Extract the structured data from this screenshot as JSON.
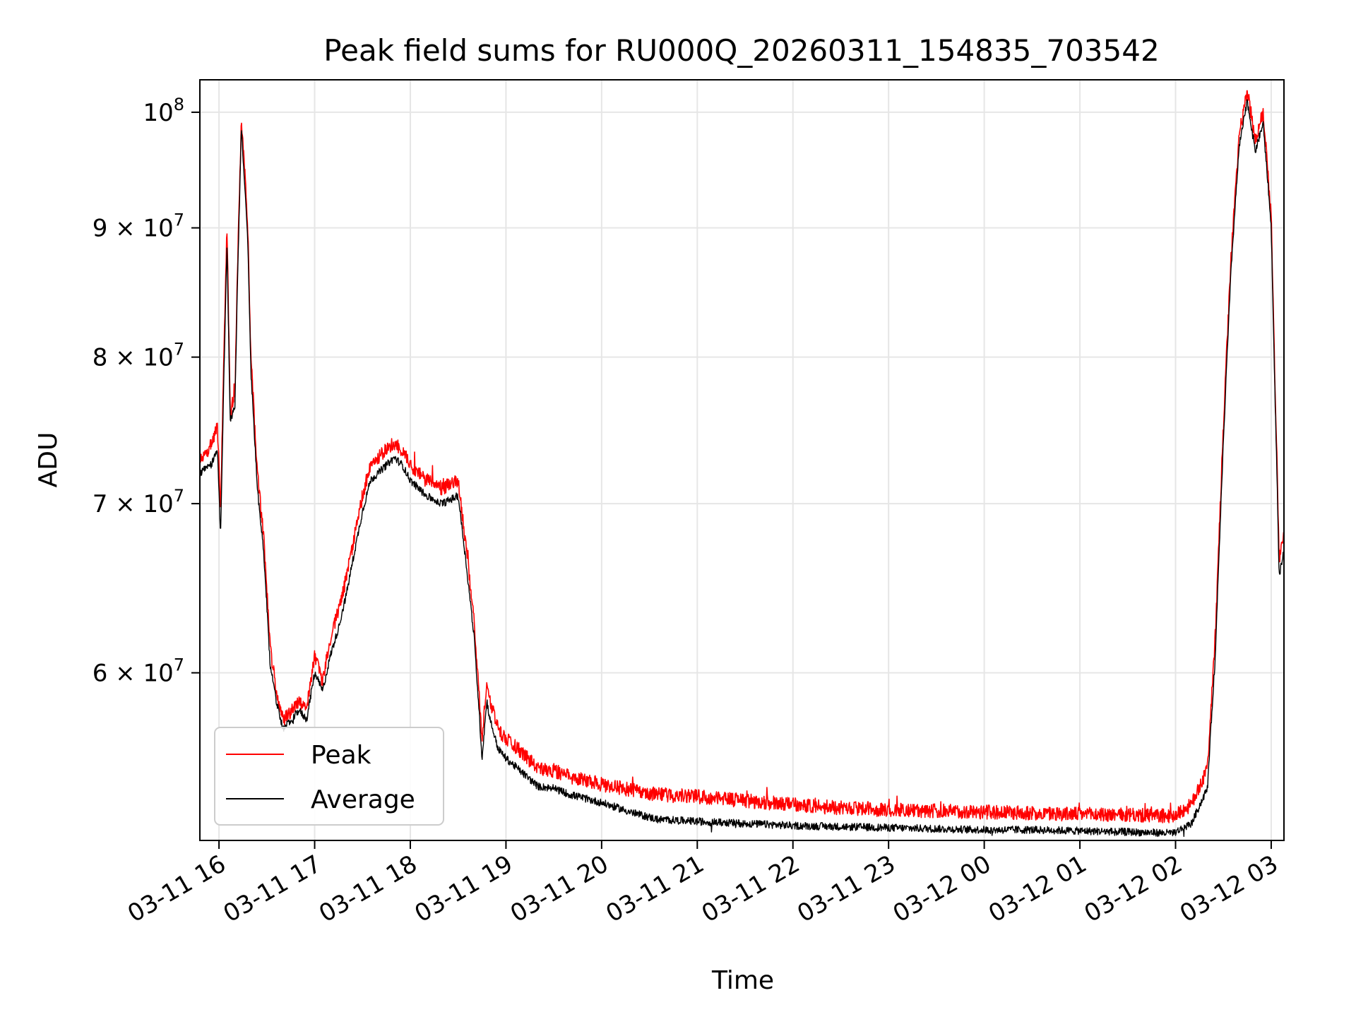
{
  "chart_data": {
    "type": "line",
    "title": "Peak field sums for RU000Q_20260311_154835_703542",
    "xlabel": "Time",
    "ylabel": "ADU",
    "y_scale": "log",
    "grid": true,
    "legend_position": "lower-left",
    "xlim": [
      "2026-03-11 15:48",
      "2026-03-12 03:08"
    ],
    "ylim": [
      51500000,
      103000000
    ],
    "x_ticks": [
      "2026-03-11 16:00",
      "2026-03-11 17:00",
      "2026-03-11 18:00",
      "2026-03-11 19:00",
      "2026-03-11 20:00",
      "2026-03-11 21:00",
      "2026-03-11 22:00",
      "2026-03-11 23:00",
      "2026-03-12 00:00",
      "2026-03-12 01:00",
      "2026-03-12 02:00",
      "2026-03-12 03:00"
    ],
    "x_tick_labels": [
      "03-11 16",
      "03-11 17",
      "03-11 18",
      "03-11 19",
      "03-11 20",
      "03-11 21",
      "03-11 22",
      "03-11 23",
      "03-12 00",
      "03-12 01",
      "03-12 02",
      "03-12 03"
    ],
    "y_ticks": [
      {
        "value": 60000000,
        "mantissa": "6",
        "exponent": "7"
      },
      {
        "value": 70000000,
        "mantissa": "7",
        "exponent": "7"
      },
      {
        "value": 80000000,
        "mantissa": "8",
        "exponent": "7"
      },
      {
        "value": 90000000,
        "mantissa": "9",
        "exponent": "7"
      },
      {
        "value": 100000000,
        "mantissa": "",
        "exponent": "8"
      }
    ],
    "x": [
      "2026-03-11 15:48",
      "2026-03-11 15:55",
      "2026-03-11 15:59",
      "2026-03-11 16:01",
      "2026-03-11 16:05",
      "2026-03-11 16:07",
      "2026-03-11 16:10",
      "2026-03-11 16:14",
      "2026-03-11 16:16",
      "2026-03-11 16:18",
      "2026-03-11 16:20",
      "2026-03-11 16:24",
      "2026-03-11 16:28",
      "2026-03-11 16:32",
      "2026-03-11 16:36",
      "2026-03-11 16:40",
      "2026-03-11 16:46",
      "2026-03-11 16:50",
      "2026-03-11 16:55",
      "2026-03-11 17:00",
      "2026-03-11 17:05",
      "2026-03-11 17:10",
      "2026-03-11 17:15",
      "2026-03-11 17:20",
      "2026-03-11 17:25",
      "2026-03-11 17:30",
      "2026-03-11 17:35",
      "2026-03-11 17:40",
      "2026-03-11 17:45",
      "2026-03-11 17:50",
      "2026-03-11 17:55",
      "2026-03-11 18:00",
      "2026-03-11 18:10",
      "2026-03-11 18:20",
      "2026-03-11 18:30",
      "2026-03-11 18:33",
      "2026-03-11 18:40",
      "2026-03-11 18:45",
      "2026-03-11 18:48",
      "2026-03-11 18:50",
      "2026-03-11 18:55",
      "2026-03-11 19:00",
      "2026-03-11 19:10",
      "2026-03-11 19:20",
      "2026-03-11 19:30",
      "2026-03-11 19:40",
      "2026-03-11 19:50",
      "2026-03-11 20:00",
      "2026-03-11 20:20",
      "2026-03-11 20:35",
      "2026-03-11 21:00",
      "2026-03-11 21:30",
      "2026-03-11 22:00",
      "2026-03-11 22:30",
      "2026-03-11 23:00",
      "2026-03-11 23:30",
      "2026-03-12 00:00",
      "2026-03-12 00:30",
      "2026-03-12 01:00",
      "2026-03-12 01:30",
      "2026-03-12 01:55",
      "2026-03-12 02:00",
      "2026-03-12 02:10",
      "2026-03-12 02:20",
      "2026-03-12 02:25",
      "2026-03-12 02:30",
      "2026-03-12 02:35",
      "2026-03-12 02:40",
      "2026-03-12 02:45",
      "2026-03-12 02:50",
      "2026-03-12 02:55",
      "2026-03-12 03:00",
      "2026-03-12 03:02",
      "2026-03-12 03:05",
      "2026-03-12 03:08"
    ],
    "series": [
      {
        "name": "Peak",
        "color": "#ff0000",
        "values": [
          72800000,
          73800000,
          75200000,
          69500000,
          90000000,
          76000000,
          77500000,
          99500000,
          95000000,
          90000000,
          80000000,
          72000000,
          68000000,
          61500000,
          59000000,
          57500000,
          58000000,
          58500000,
          58000000,
          61000000,
          59500000,
          62000000,
          63500000,
          65500000,
          68000000,
          70500000,
          72500000,
          73000000,
          73500000,
          74000000,
          73500000,
          72500000,
          71500000,
          71000000,
          71500000,
          69000000,
          63000000,
          56500000,
          59500000,
          58500000,
          57000000,
          56500000,
          55800000,
          55000000,
          54900000,
          54600000,
          54400000,
          54200000,
          53900000,
          53700000,
          53600000,
          53400000,
          53200000,
          53050000,
          52950000,
          52900000,
          52850000,
          52800000,
          52750000,
          52700000,
          52650000,
          52700000,
          53200000,
          55000000,
          62000000,
          75000000,
          88000000,
          98000000,
          102000000,
          97500000,
          100000000,
          91000000,
          80000000,
          66500000,
          68000000
        ]
      },
      {
        "name": "Average",
        "color": "#000000",
        "values": [
          72000000,
          72500000,
          73500000,
          68000000,
          88500000,
          75500000,
          76500000,
          98500000,
          94000000,
          89000000,
          79000000,
          71000000,
          67000000,
          60500000,
          58500000,
          57000000,
          57500000,
          58000000,
          57500000,
          60000000,
          59000000,
          61000000,
          62500000,
          64500000,
          67000000,
          69500000,
          71500000,
          72000000,
          72500000,
          73000000,
          72500000,
          71500000,
          70500000,
          70000000,
          70500000,
          68000000,
          62000000,
          55500000,
          58500000,
          57500000,
          56000000,
          55500000,
          54800000,
          54100000,
          54000000,
          53700000,
          53500000,
          53300000,
          52800000,
          52500000,
          52400000,
          52300000,
          52200000,
          52150000,
          52100000,
          52050000,
          52000000,
          52000000,
          51950000,
          51900000,
          51850000,
          51900000,
          52300000,
          54000000,
          61000000,
          74000000,
          87000000,
          97000000,
          101000000,
          96500000,
          99000000,
          90000000,
          79000000,
          65500000,
          67000000
        ]
      }
    ]
  }
}
